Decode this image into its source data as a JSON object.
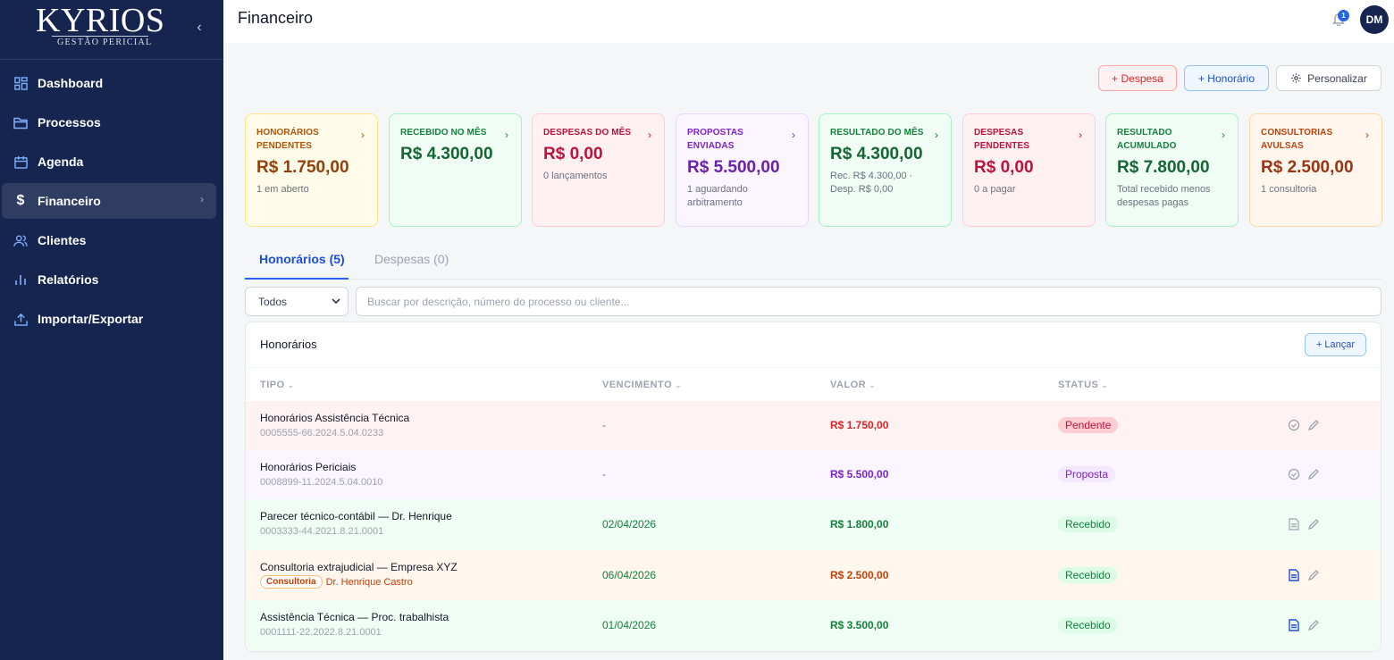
{
  "sidebar": {
    "brand_name": "KYRIOS",
    "brand_subtitle": "GESTÃO PERICIAL",
    "items": [
      {
        "label": "Dashboard",
        "icon": "dashboard-grid-icon"
      },
      {
        "label": "Processos",
        "icon": "folder-icon"
      },
      {
        "label": "Agenda",
        "icon": "calendar-icon"
      },
      {
        "label": "Financeiro",
        "icon": "dollar-icon",
        "active": true
      },
      {
        "label": "Clientes",
        "icon": "users-icon"
      },
      {
        "label": "Relatórios",
        "icon": "bar-chart-icon"
      },
      {
        "label": "Importar/Exportar",
        "icon": "upload-icon"
      }
    ]
  },
  "header": {
    "title": "Financeiro",
    "notification_count": "1",
    "avatar_initials": "DM"
  },
  "actions": {
    "despesa": "+ Despesa",
    "honorario": "+ Honorário",
    "personalizar": "Personalizar"
  },
  "cards": [
    {
      "label": "Honorários pendentes",
      "value": "R$ 1.750,00",
      "sub": "1 em aberto",
      "color": "yellow"
    },
    {
      "label": "Recebido no mês",
      "value": "R$ 4.300,00",
      "sub": "",
      "color": "green"
    },
    {
      "label": "Despesas do mês",
      "value": "R$ 0,00",
      "sub": "0 lançamentos",
      "color": "red"
    },
    {
      "label": "Propostas enviadas",
      "value": "R$ 5.500,00",
      "sub": "1 aguardando arbitramento",
      "color": "purple"
    },
    {
      "label": "Resultado do mês",
      "value": "R$ 4.300,00",
      "sub": "Rec. R$ 4.300,00 · Desp. R$ 0,00",
      "color": "green"
    },
    {
      "label": "Despesas pendentes",
      "value": "R$ 0,00",
      "sub": "0 a pagar",
      "color": "red"
    },
    {
      "label": "Resultado acumulado",
      "value": "R$ 7.800,00",
      "sub": "Total recebido menos despesas pagas",
      "color": "green"
    },
    {
      "label": "Consultorias avulsas",
      "value": "R$ 2.500,00",
      "sub": "1 consultoria",
      "color": "orange"
    }
  ],
  "tabs": {
    "honorarios": "Honorários (5)",
    "despesas": "Despesas (0)"
  },
  "filter": {
    "selected": "Todos",
    "search_placeholder": "Buscar por descrição, número do processo ou cliente..."
  },
  "table": {
    "title": "Honorários",
    "add_label": "+ Lançar",
    "columns": [
      "TIPO",
      "VENCIMENTO",
      "VALOR",
      "STATUS"
    ],
    "rows": [
      {
        "tipo": "Honorários Assistência Técnica",
        "processo": "0005555-66.2024.5.04.0233",
        "vencimento": "-",
        "valor": "R$ 1.750,00",
        "status": "Pendente",
        "bg": "#fef2f2",
        "value_color": "#dc2626",
        "venc_color": "#6b7280"
      },
      {
        "tipo": "Honorários Periciais",
        "processo": "0008899-11.2024.5.04.0010",
        "vencimento": "-",
        "valor": "R$ 5.500,00",
        "status": "Proposta",
        "bg": "#faf5ff",
        "value_color": "#7e22ce",
        "venc_color": "#6b7280"
      },
      {
        "tipo": "Parecer técnico-contábil — Dr. Henrique",
        "processo": "0003333-44.2021.8.21.0001",
        "vencimento": "02/04/2026",
        "valor": "R$ 1.800,00",
        "status": "Recebido",
        "bg": "#f0fdf4",
        "value_color": "#15803d",
        "venc_color": "#15803d"
      },
      {
        "tipo": "Consultoria extrajudicial — Empresa XYZ",
        "tag": "Consultoria",
        "cliente": "Dr. Henrique Castro",
        "vencimento": "06/04/2026",
        "valor": "R$ 2.500,00",
        "status": "Recebido",
        "bg": "#fff7ed",
        "value_color": "#c2410c",
        "venc_color": "#15803d"
      },
      {
        "tipo": "Assistência Técnica — Proc. trabalhista",
        "processo": "0001111-22.2022.8.21.0001",
        "vencimento": "01/04/2026",
        "valor": "R$ 3.500,00",
        "status": "Recebido",
        "bg": "#f0fdf4",
        "value_color": "#15803d",
        "venc_color": "#15803d"
      }
    ]
  }
}
